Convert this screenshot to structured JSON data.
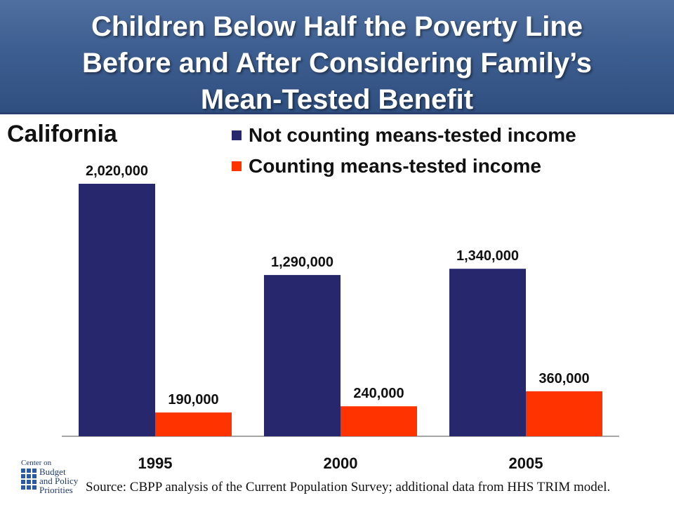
{
  "title": {
    "lines": [
      "Children Below Half the Poverty Line",
      "Before and After Considering Family’s",
      "Mean-Tested Benefit"
    ]
  },
  "colors": {
    "title_band": "#3d5e90",
    "series_not_counting": "#27276e",
    "series_counting": "#ff3300"
  },
  "chart_data": {
    "type": "bar",
    "title": "California",
    "categories": [
      "1995",
      "2000",
      "2005"
    ],
    "series": [
      {
        "name": "Not counting means-tested income",
        "values": [
          2020000,
          1290000,
          1340000
        ],
        "labels": [
          "2,020,000",
          "1,290,000",
          "1,340,000"
        ]
      },
      {
        "name": "Counting means-tested income",
        "values": [
          190000,
          240000,
          360000
        ],
        "labels": [
          "190,000",
          "240,000",
          "360,000"
        ]
      }
    ],
    "ylim": [
      0,
      2020000
    ],
    "grid": false,
    "legend_placement": "top-right"
  },
  "logo": {
    "top_text": "Center on",
    "lines": [
      "Budget",
      "and Policy",
      "Priorities"
    ]
  },
  "source": "Source: CBPP analysis of the Current Population Survey; additional data from HHS TRIM model."
}
